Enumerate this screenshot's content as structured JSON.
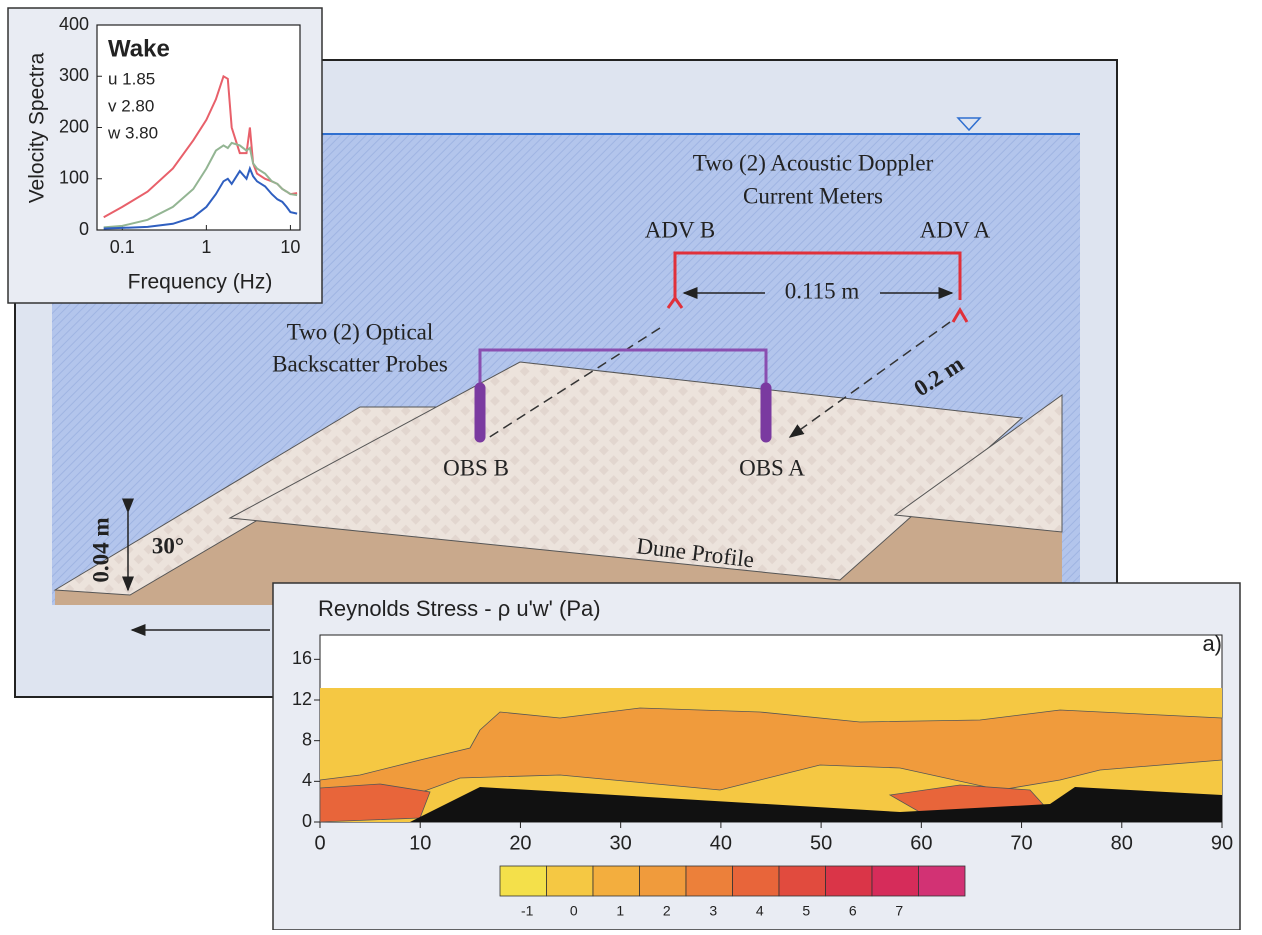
{
  "diagram": {
    "adv_title": [
      "Two (2) Acoustic Doppler",
      "Current Meters"
    ],
    "adv_b": "ADV B",
    "adv_a": "ADV A",
    "adv_spacing": "0.115 m",
    "obs_title": [
      "Two (2) Optical",
      "Backscatter Probes"
    ],
    "offset": "0.2 m",
    "obs_b": "OBS B",
    "obs_a": "OBS A",
    "height": "0.04 m",
    "angle": "30°",
    "profile": "Dune Profile"
  },
  "chart_data": [
    {
      "type": "line",
      "title": "Wake",
      "y_label": "Velocity Spectra",
      "x_label": "Frequency (Hz)",
      "log_x": true,
      "x": [
        0.06,
        0.1,
        0.2,
        0.4,
        0.7,
        1,
        1.3,
        1.6,
        1.8,
        2,
        2.5,
        3,
        3.3,
        3.6,
        4,
        5,
        6,
        7,
        8,
        9,
        10,
        12
      ],
      "series": [
        {
          "name": "u 1.85",
          "color": "#e8606a",
          "values": [
            25,
            45,
            75,
            120,
            175,
            215,
            255,
            300,
            295,
            200,
            150,
            150,
            200,
            130,
            110,
            100,
            95,
            90,
            80,
            75,
            70,
            72
          ]
        },
        {
          "name": "v 2.80",
          "color": "#93b593",
          "values": [
            5,
            8,
            20,
            45,
            80,
            120,
            155,
            165,
            160,
            170,
            165,
            155,
            160,
            130,
            120,
            110,
            95,
            90,
            80,
            75,
            70,
            68
          ]
        },
        {
          "name": "w 3.80",
          "color": "#2f5fc0",
          "values": [
            3,
            4,
            6,
            12,
            25,
            45,
            70,
            95,
            100,
            90,
            115,
            100,
            120,
            105,
            95,
            85,
            70,
            60,
            55,
            45,
            35,
            32
          ]
        }
      ],
      "xlim": [
        0.05,
        13
      ],
      "xticks": [
        0.1,
        1,
        10
      ],
      "ylim": [
        0,
        400
      ],
      "yticks": [
        0,
        100,
        200,
        300,
        400
      ]
    },
    {
      "type": "contour",
      "title": "Reynolds Stress - ρ u'w' (Pa)",
      "panel": "a)",
      "xlim": [
        0,
        90
      ],
      "xticks": [
        0,
        10,
        20,
        30,
        40,
        50,
        60,
        70,
        80,
        90
      ],
      "ylim": [
        0,
        18
      ],
      "yticks": [
        0,
        4,
        8,
        12,
        16
      ],
      "colorbar": {
        "levels": [
          -1,
          0,
          1,
          2,
          3,
          4,
          5,
          6,
          7
        ],
        "colors": [
          "#f4e04a",
          "#f5c843",
          "#f3ae3e",
          "#f09b3c",
          "#ec803a",
          "#e8653a",
          "#e14b3e",
          "#da3548",
          "#d62c5a",
          "#d23274"
        ]
      }
    }
  ]
}
